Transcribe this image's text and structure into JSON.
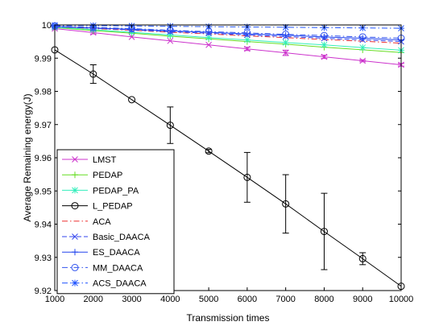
{
  "chart_data": {
    "type": "line",
    "title": "",
    "xlabel": "Transmission times",
    "ylabel": "Average Remaining energy(J)",
    "xlim": [
      1000,
      10000
    ],
    "ylim": [
      9.92,
      10.0
    ],
    "x_ticks": [
      "1000",
      "2000",
      "3000",
      "4000",
      "5000",
      "6000",
      "7000",
      "8000",
      "9000",
      "10000"
    ],
    "y_ticks": [
      "9.92",
      "9.93",
      "9.94",
      "9.95",
      "9.96",
      "9.97",
      "9.98",
      "9.99",
      "10"
    ],
    "grid": false,
    "legend_position": "bottom-left",
    "x": [
      1000,
      2000,
      3000,
      4000,
      5000,
      6000,
      7000,
      8000,
      9000,
      10000
    ],
    "series": [
      {
        "name": "LMST",
        "color": "#cc33cc",
        "marker": "x",
        "dash": "solid",
        "values": [
          9.9989,
          9.9977,
          9.9964,
          9.9952,
          9.994,
          9.9928,
          9.9916,
          9.9904,
          9.9892,
          9.988
        ],
        "err": [
          0,
          0.0004,
          0,
          0,
          0,
          0.0005,
          0.0008,
          0.0005,
          0.0003,
          0.0004
        ]
      },
      {
        "name": "PEDAP",
        "color": "#66dd22",
        "marker": "plus",
        "dash": "solid",
        "values": [
          9.9992,
          9.9983,
          9.9975,
          9.9966,
          9.9958,
          9.995,
          9.9942,
          9.9933,
          9.9925,
          9.9917
        ],
        "err": [
          0,
          0,
          0,
          0,
          0,
          0,
          0,
          0,
          0,
          0
        ]
      },
      {
        "name": "PEDAP_PA",
        "color": "#33eebb",
        "marker": "star",
        "dash": "solid",
        "values": [
          9.9993,
          9.9986,
          9.9978,
          9.997,
          9.9962,
          9.9955,
          9.9947,
          9.994,
          9.9932,
          9.9924
        ],
        "err": [
          0,
          0,
          0,
          0,
          0,
          0,
          0,
          0,
          0,
          0
        ]
      },
      {
        "name": "L_PEDAP",
        "color": "#000000",
        "marker": "circle",
        "dash": "solid",
        "values": [
          9.9925,
          9.9852,
          9.9775,
          9.9698,
          9.962,
          9.9541,
          9.9461,
          9.9378,
          9.9296,
          9.9213
        ],
        "err": [
          0,
          0.0028,
          0,
          0.0055,
          0.0005,
          0.0075,
          0.0088,
          0.0115,
          0.0018,
          0
        ]
      },
      {
        "name": "ACA",
        "color": "#ee3333",
        "marker": "none",
        "dash": "dashdot",
        "values": [
          9.9995,
          9.9989,
          9.9984,
          9.9978,
          9.9973,
          9.9967,
          9.9962,
          9.9956,
          9.9951,
          9.9945
        ],
        "err": [
          0,
          0,
          0,
          0,
          0,
          0,
          0,
          0,
          0,
          0
        ]
      },
      {
        "name": "Basic_DAACA",
        "color": "#3344ee",
        "marker": "x",
        "dash": "dashed",
        "values": [
          9.9995,
          9.999,
          9.9985,
          9.998,
          9.9975,
          9.997,
          9.9965,
          9.996,
          9.9955,
          9.995
        ],
        "err": [
          0,
          0,
          0,
          0,
          0,
          0,
          0,
          0,
          0,
          0
        ]
      },
      {
        "name": "ES_DAACA",
        "color": "#2244ee",
        "marker": "plus",
        "dash": "solid",
        "values": [
          9.9996,
          9.9991,
          9.9987,
          9.9982,
          9.9978,
          9.9973,
          9.9969,
          9.9964,
          9.996,
          9.9955
        ],
        "err": [
          0,
          0,
          0,
          0,
          0,
          0,
          0,
          0,
          0,
          0
        ]
      },
      {
        "name": "MM_DAACA",
        "color": "#3355ee",
        "marker": "circle",
        "dash": "dashdot",
        "values": [
          9.9997,
          9.9993,
          9.9989,
          9.9984,
          9.998,
          9.9976,
          9.9972,
          9.9968,
          9.9964,
          9.996
        ],
        "err": [
          0,
          0,
          0,
          0,
          0,
          0,
          0,
          0,
          0,
          0
        ]
      },
      {
        "name": "ACS_DAACA",
        "color": "#2255ff",
        "marker": "star",
        "dash": "dashdot",
        "values": [
          9.9999,
          9.9998,
          9.9997,
          9.9996,
          9.9995,
          9.9994,
          9.9993,
          9.9992,
          9.9991,
          9.999
        ],
        "err": [
          0,
          0,
          0,
          0,
          0,
          0,
          0,
          0,
          0,
          0
        ]
      }
    ]
  }
}
